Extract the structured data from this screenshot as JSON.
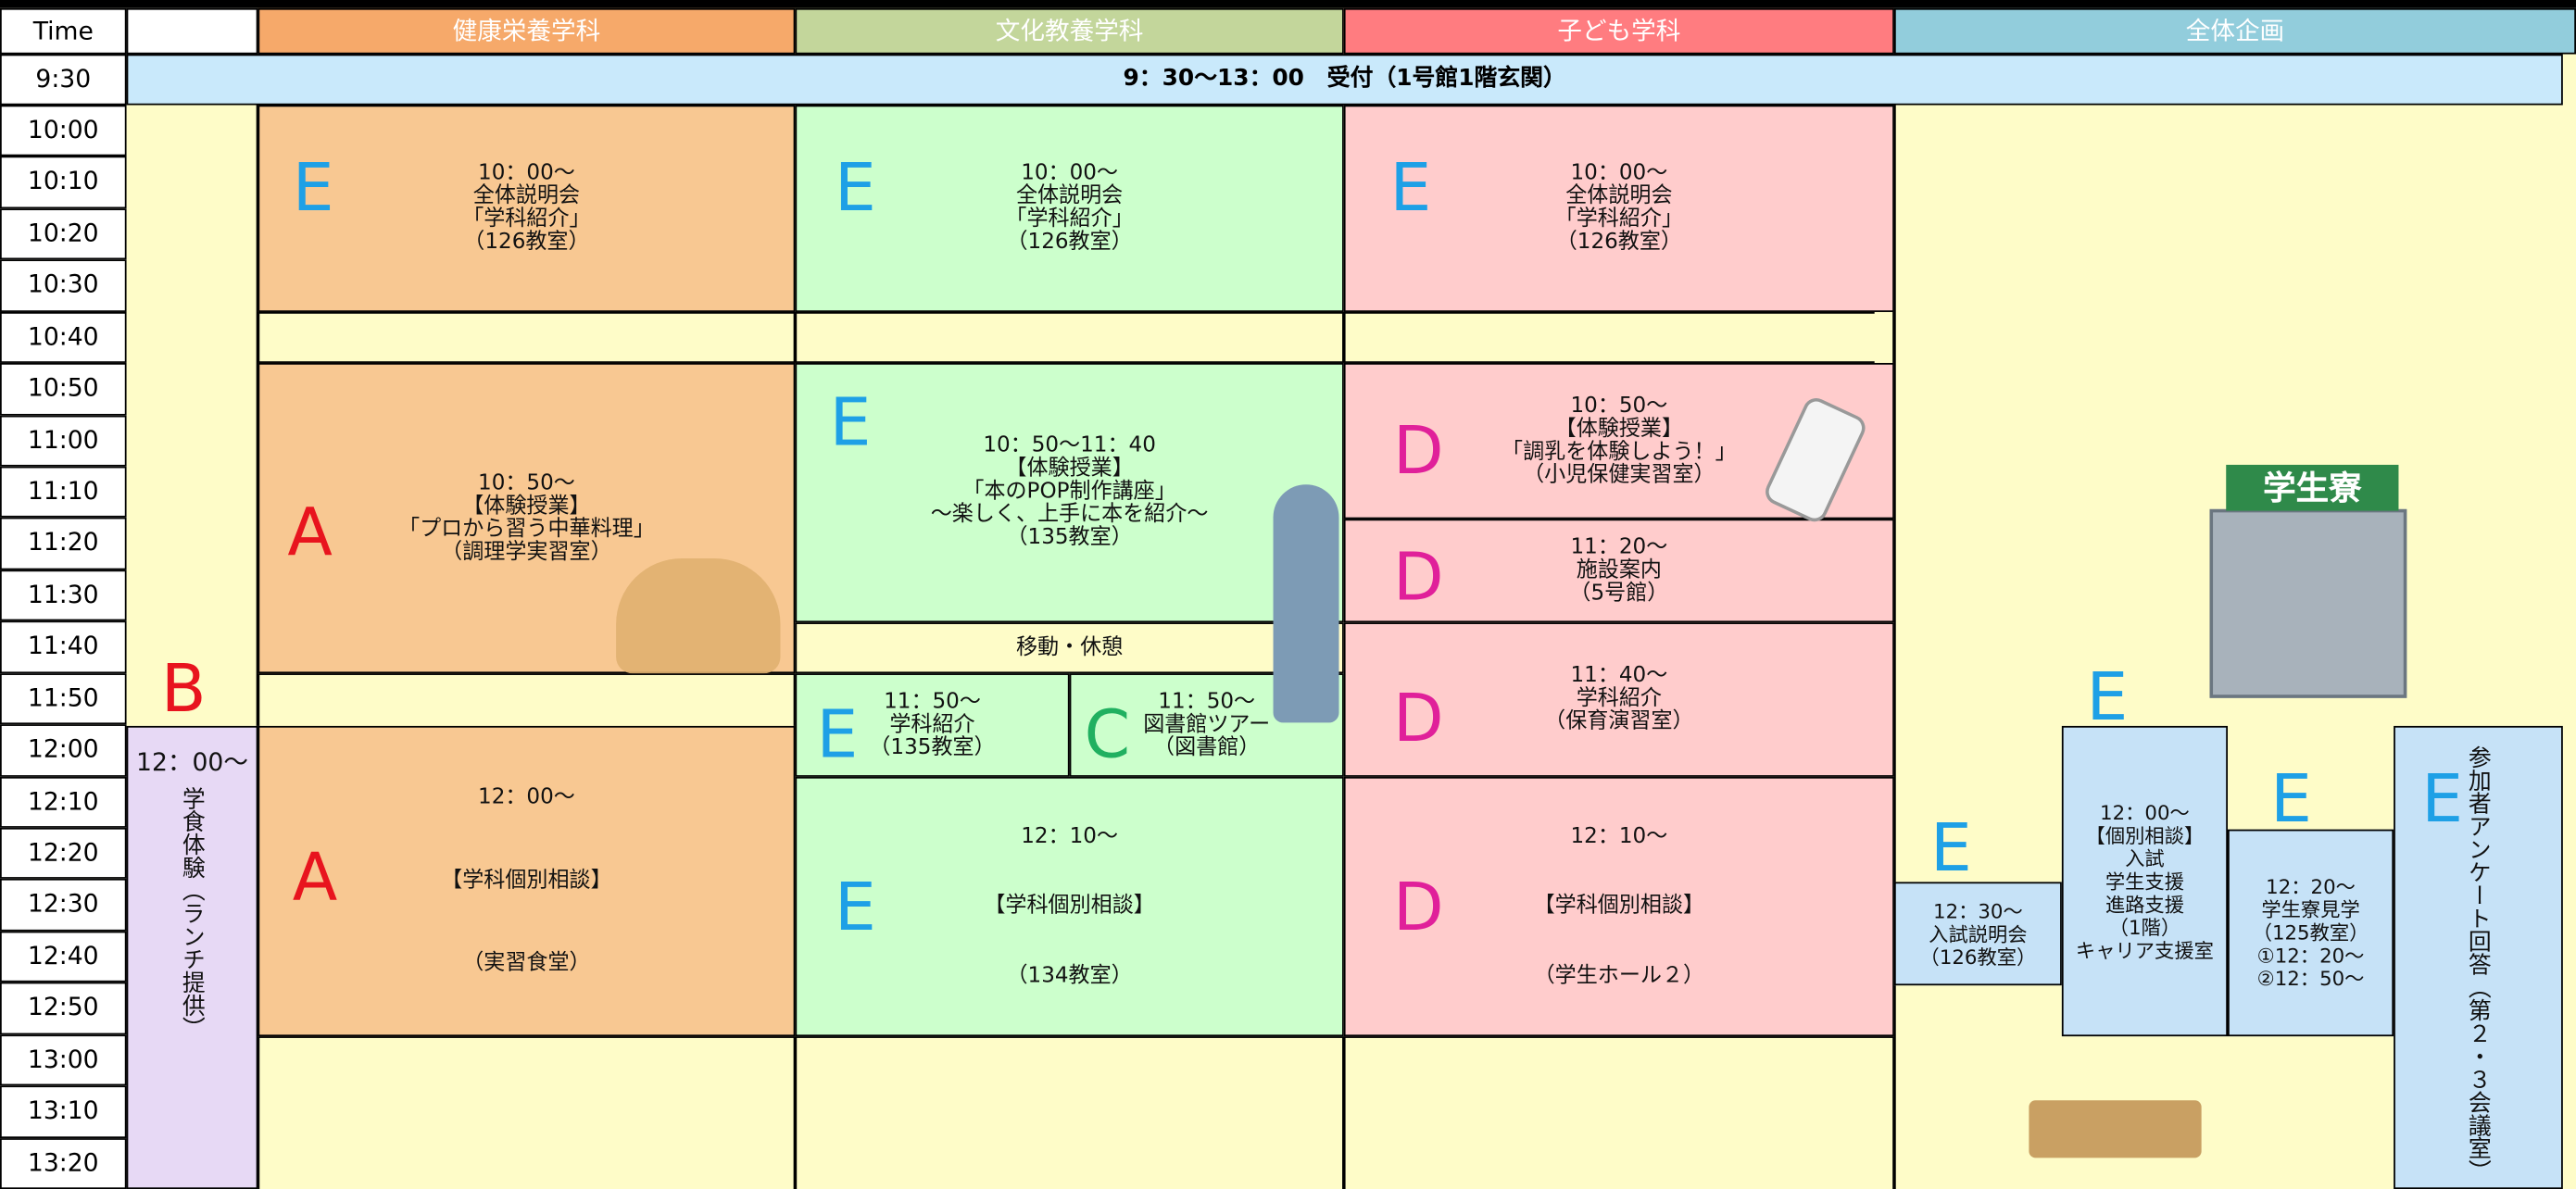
{
  "header": {
    "time_label": "Time",
    "columns": [
      "健康栄養学科",
      "文化教養学科",
      "子ども学科",
      "全体企画"
    ]
  },
  "times": [
    "9:30",
    "10:00",
    "10:10",
    "10:20",
    "10:30",
    "10:40",
    "10:50",
    "11:00",
    "11:10",
    "11:20",
    "11:30",
    "11:40",
    "11:50",
    "12:00",
    "12:10",
    "12:20",
    "12:30",
    "12:40",
    "12:50",
    "13:00",
    "13:10",
    "13:20"
  ],
  "reception": "9：30～13：00　受付（1号館1階玄関）",
  "cells": [
    {
      "letter": "E",
      "lines": [
        "10：00～",
        "全体説明会",
        "「学科紹介」",
        "（126教室）"
      ]
    },
    {
      "letter": "E",
      "lines": [
        "10：00～",
        "全体説明会",
        "「学科紹介」",
        "（126教室）"
      ]
    },
    {
      "letter": "E",
      "lines": [
        "10：00～",
        "全体説明会",
        "「学科紹介」",
        "（126教室）"
      ]
    },
    {
      "letter": "A",
      "lines": [
        "10：50～",
        "【体験授業】",
        "「プロから習う中華料理」",
        "（調理学実習室）"
      ]
    },
    {
      "letter": "E",
      "lines": [
        "10：50～11：40",
        "【体験授業】",
        "「本のPOP制作講座」",
        "～楽しく、上手に本を紹介～",
        "（135教室）"
      ]
    },
    {
      "letter": "D",
      "lines": [
        "10：50～",
        "【体験授業】",
        "「調乳を体験しよう！」",
        "（小児保健実習室）"
      ]
    },
    {
      "letter": "D",
      "lines": [
        "11：20～",
        "施設案内",
        "（5号館）"
      ]
    },
    {
      "lines": [
        "移動・休憩"
      ]
    },
    {
      "letter": "D",
      "lines": [
        "11：40～",
        "学科紹介",
        "（保育演習室）"
      ]
    },
    {
      "letter": "E",
      "lines": [
        "11：50～",
        "学科紹介",
        "（135教室）"
      ]
    },
    {
      "letter": "C",
      "lines": [
        "11：50～",
        "図書館ツアー",
        "（図書館）"
      ]
    },
    {
      "letter": "A",
      "lines": [
        "12：00～",
        "【学科個別相談】",
        "（実習食堂）"
      ]
    },
    {
      "letter": "E",
      "lines": [
        "12：10～",
        "【学科個別相談】",
        "（134教室）"
      ]
    },
    {
      "letter": "D",
      "lines": [
        "12：10～",
        "【学科個別相談】",
        "（学生ホール２）"
      ]
    },
    {
      "letter": "B",
      "lines": [
        "12：00～",
        "学食体験（ランチ提供）"
      ]
    },
    {
      "letter": "E",
      "lines": [
        "12：30～",
        "入試説明会",
        "（126教室）"
      ]
    },
    {
      "letter": "E",
      "lines": [
        "12：00～",
        "【個別相談】",
        "入試",
        "学生支援",
        "進路支援",
        "（1階）",
        "キャリア支援室"
      ]
    },
    {
      "letter": "E",
      "lines": [
        "12：20～",
        "学生寮見学",
        "（125教室）",
        "①12：20～",
        "②12：50～"
      ]
    },
    {
      "letter": "E",
      "lines": [
        "参加者アンケート回答（第２・３会議室）"
      ]
    }
  ],
  "illustration": {
    "sign": "学生寮"
  }
}
